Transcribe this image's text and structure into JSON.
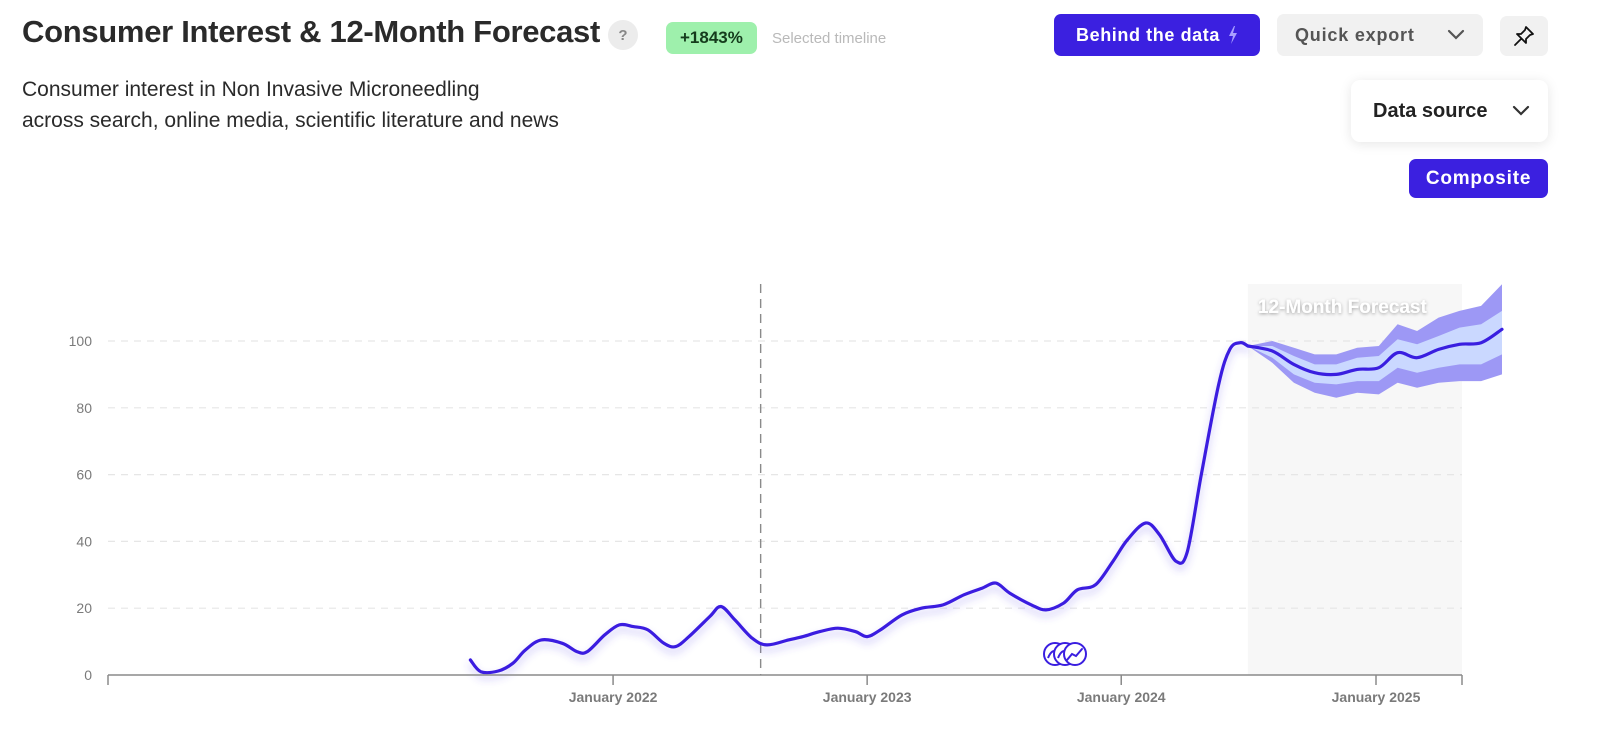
{
  "header": {
    "title": "Consumer Interest & 12-Month Forecast",
    "help_label": "?",
    "change_badge": "+1843%",
    "change_note": "Selected timeline",
    "subtitle_line1": "Consumer interest in Non Invasive Microneedling",
    "subtitle_line2": "across search, online media, scientific literature and news"
  },
  "toolbar": {
    "behind_label": "Behind the data",
    "export_label": "Quick export",
    "data_source_label": "Data source",
    "composite_label": "Composite"
  },
  "colors": {
    "accent": "#3b20e0",
    "line": "#3a1ee0",
    "forecast_outer": "#9d98f5",
    "forecast_inner": "#cad8ff",
    "badge_bg": "#9ef0ac",
    "forecast_region": "#f7f7f7"
  },
  "icons": {
    "help": "question-icon",
    "bolt": "lightning-bolt-icon",
    "chevron": "chevron-down-icon",
    "pin": "pin-icon",
    "events": "event-markers-icon"
  },
  "chart_data": {
    "type": "line",
    "title": "",
    "xlabel": "",
    "ylabel": "",
    "ylim": [
      0,
      100
    ],
    "yticks": [
      0,
      20,
      40,
      60,
      80,
      100
    ],
    "xticks": [
      "January 2022",
      "January 2023",
      "January 2024",
      "January 2025"
    ],
    "grid": "horizontal dashed",
    "marker_date": "2022-08",
    "forecast_label": "12-Month Forecast",
    "series": [
      {
        "kind": "history",
        "points": [
          [
            "2021-06-10",
            4.5
          ],
          [
            "2021-06-25",
            1.0
          ],
          [
            "2021-07-20",
            1.2
          ],
          [
            "2021-08-10",
            3.5
          ],
          [
            "2021-08-28",
            7.5
          ],
          [
            "2021-09-20",
            10.5
          ],
          [
            "2021-10-20",
            9.5
          ],
          [
            "2021-11-10",
            7.0
          ],
          [
            "2021-11-25",
            7.0
          ],
          [
            "2021-12-20",
            12.0
          ],
          [
            "2022-01-10",
            15.0
          ],
          [
            "2022-01-30",
            14.5
          ],
          [
            "2022-02-20",
            13.5
          ],
          [
            "2022-03-15",
            9.5
          ],
          [
            "2022-04-01",
            8.5
          ],
          [
            "2022-04-20",
            11.5
          ],
          [
            "2022-05-20",
            17.5
          ],
          [
            "2022-06-05",
            20.5
          ],
          [
            "2022-06-25",
            16.5
          ],
          [
            "2022-07-20",
            11.0
          ],
          [
            "2022-08-10",
            9.0
          ],
          [
            "2022-09-10",
            10.5
          ],
          [
            "2022-10-01",
            11.5
          ],
          [
            "2022-10-25",
            13.0
          ],
          [
            "2022-11-20",
            14.0
          ],
          [
            "2022-12-15",
            13.0
          ],
          [
            "2023-01-01",
            11.5
          ],
          [
            "2023-01-20",
            13.5
          ],
          [
            "2023-02-20",
            18.0
          ],
          [
            "2023-03-20",
            20.0
          ],
          [
            "2023-04-20",
            21.0
          ],
          [
            "2023-05-20",
            24.0
          ],
          [
            "2023-06-15",
            26.0
          ],
          [
            "2023-07-05",
            27.5
          ],
          [
            "2023-07-25",
            24.5
          ],
          [
            "2023-08-25",
            21.0
          ],
          [
            "2023-09-15",
            19.5
          ],
          [
            "2023-10-10",
            21.5
          ],
          [
            "2023-10-30",
            25.5
          ],
          [
            "2023-11-25",
            27.0
          ],
          [
            "2023-12-20",
            34.0
          ],
          [
            "2024-01-10",
            40.5
          ],
          [
            "2024-02-05",
            45.5
          ],
          [
            "2024-02-25",
            42.0
          ],
          [
            "2024-03-20",
            34.0
          ],
          [
            "2024-04-05",
            37.0
          ],
          [
            "2024-04-25",
            60.0
          ],
          [
            "2024-05-20",
            87.0
          ],
          [
            "2024-06-05",
            97.5
          ],
          [
            "2024-06-20",
            99.5
          ],
          [
            "2024-07-01",
            98.5
          ]
        ]
      },
      {
        "kind": "forecast",
        "points": [
          [
            "2024-07-01",
            98.5
          ],
          [
            "2024-08-05",
            97.0
          ],
          [
            "2024-09-05",
            93.0
          ],
          [
            "2024-10-05",
            90.5
          ],
          [
            "2024-11-05",
            90.0
          ],
          [
            "2024-12-05",
            91.5
          ],
          [
            "2025-01-05",
            92.0
          ],
          [
            "2025-02-01",
            96.5
          ],
          [
            "2025-03-01",
            95.0
          ],
          [
            "2025-04-01",
            97.5
          ],
          [
            "2025-05-01",
            99.0
          ],
          [
            "2025-06-01",
            99.5
          ],
          [
            "2025-07-01",
            103.5
          ]
        ],
        "inner_band_lower": [
          98.5,
          95.0,
          90.0,
          87.5,
          87.0,
          88.0,
          88.0,
          92.0,
          90.5,
          92.0,
          93.0,
          93.0,
          96.0
        ],
        "inner_band_upper": [
          98.5,
          98.5,
          95.5,
          93.0,
          93.0,
          95.0,
          95.5,
          100.5,
          99.0,
          101.5,
          104.0,
          105.0,
          109.0
        ],
        "outer_band_lower": [
          98.5,
          93.5,
          87.5,
          84.5,
          83.0,
          84.5,
          84.0,
          87.5,
          86.0,
          87.5,
          88.0,
          88.0,
          90.0
        ],
        "outer_band_upper": [
          98.5,
          100.0,
          98.0,
          96.0,
          96.0,
          98.0,
          98.5,
          105.0,
          103.0,
          107.0,
          109.0,
          110.5,
          117.0
        ]
      }
    ]
  }
}
